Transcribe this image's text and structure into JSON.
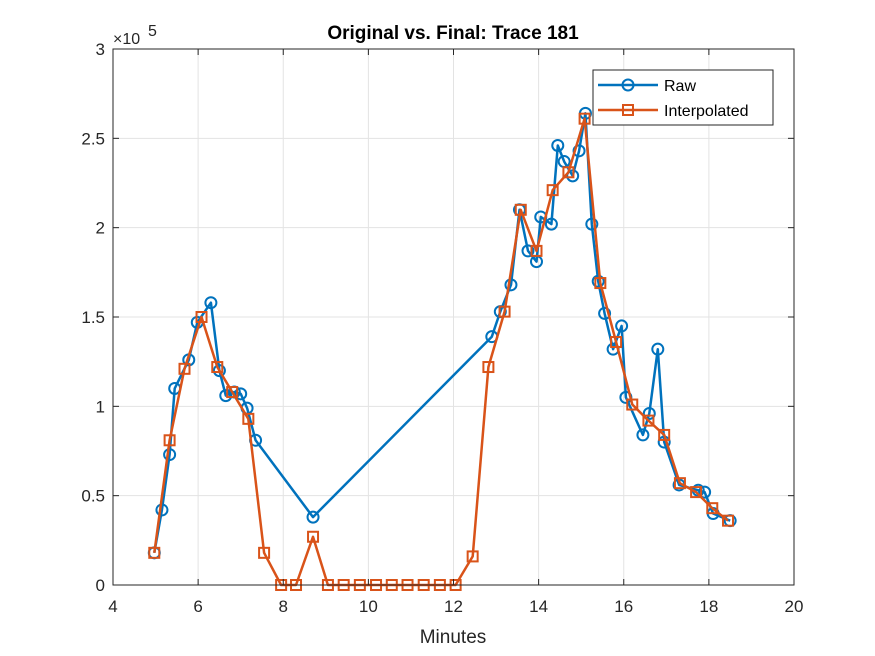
{
  "chart_data": {
    "type": "line",
    "title": "Original vs. Final: Trace 181",
    "xlabel": "Minutes",
    "ylabel": "",
    "xlim": [
      4,
      20
    ],
    "ylim": [
      0,
      300000
    ],
    "xticks": [
      4,
      6,
      8,
      10,
      12,
      14,
      16,
      18,
      20
    ],
    "yticks": [
      0,
      50000,
      100000,
      150000,
      200000,
      250000,
      300000
    ],
    "xtick_labels": [
      "4",
      "6",
      "8",
      "10",
      "12",
      "14",
      "16",
      "18",
      "20"
    ],
    "ytick_labels": [
      "0",
      "0.5",
      "1",
      "1.5",
      "2",
      "2.5",
      "3"
    ],
    "y_exponent_base": "×10",
    "y_exponent_power": "5",
    "grid": true,
    "legend_position": "top-right",
    "series": [
      {
        "name": "Raw",
        "color": "#0072BD",
        "marker": "circle",
        "x": [
          4.97,
          5.15,
          5.33,
          5.45,
          5.78,
          5.98,
          6.3,
          6.5,
          6.65,
          6.85,
          7.0,
          7.15,
          7.35,
          8.7,
          12.9,
          13.1,
          13.35,
          13.55,
          13.75,
          13.95,
          14.05,
          14.3,
          14.45,
          14.6,
          14.8,
          14.95,
          15.1,
          15.25,
          15.4,
          15.55,
          15.75,
          15.95,
          16.05,
          16.45,
          16.6,
          16.8,
          16.95,
          17.3,
          17.75,
          17.9,
          18.1,
          18.5
        ],
        "y": [
          18000,
          42000,
          73000,
          110000,
          126000,
          147000,
          158000,
          120000,
          106000,
          108000,
          107000,
          99000,
          81000,
          38000,
          139000,
          153000,
          168000,
          210000,
          187000,
          181000,
          206000,
          202000,
          246000,
          237000,
          229000,
          243000,
          264000,
          202000,
          170000,
          152000,
          132000,
          145000,
          105000,
          84000,
          96000,
          132000,
          80000,
          56000,
          53000,
          52000,
          40000,
          36000
        ]
      },
      {
        "name": "Interpolated",
        "color": "#D95319",
        "marker": "square",
        "x": [
          4.97,
          5.33,
          5.68,
          6.08,
          6.45,
          6.8,
          7.18,
          7.55,
          7.95,
          8.3,
          8.7,
          9.05,
          9.42,
          9.8,
          10.18,
          10.55,
          10.92,
          11.3,
          11.68,
          12.05,
          12.45,
          12.82,
          13.2,
          13.58,
          13.95,
          14.33,
          14.7,
          15.08,
          15.45,
          15.82,
          16.2,
          16.58,
          16.95,
          17.32,
          17.7,
          18.08,
          18.45
        ],
        "y": [
          18000,
          81000,
          121000,
          150000,
          122000,
          108000,
          93000,
          18000,
          0,
          0,
          27000,
          0,
          0,
          0,
          0,
          0,
          0,
          0,
          0,
          0,
          16000,
          122000,
          153000,
          210000,
          187000,
          221000,
          231000,
          261000,
          169000,
          136000,
          101000,
          92000,
          84000,
          57000,
          52000,
          43000,
          36000
        ]
      }
    ]
  }
}
